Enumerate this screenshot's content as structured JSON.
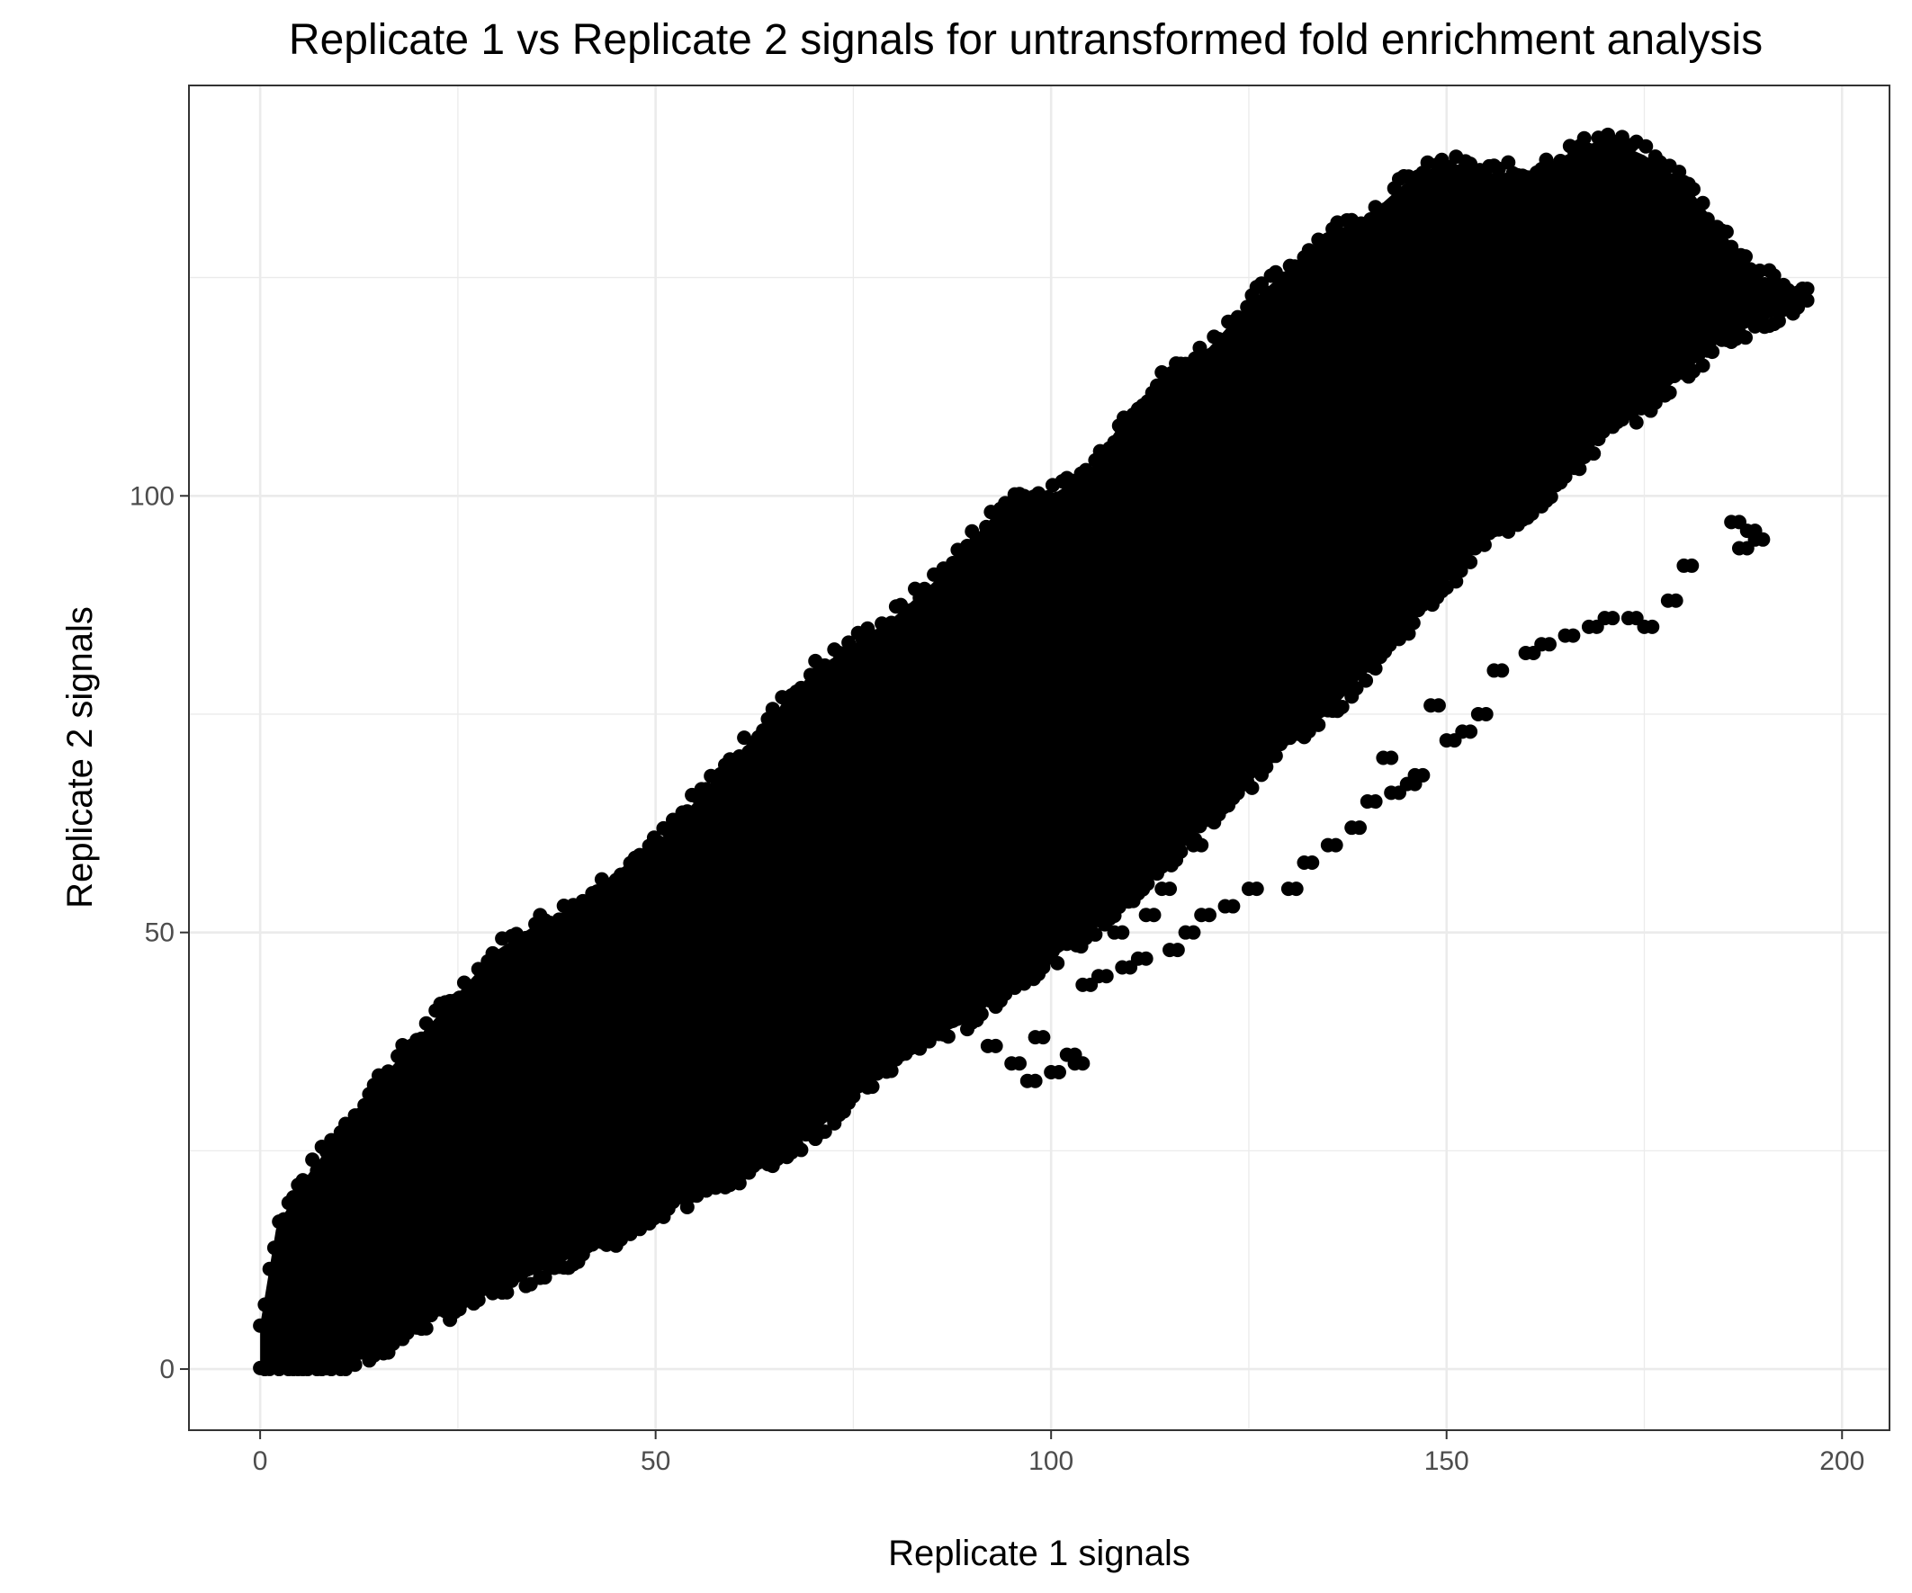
{
  "chart_data": {
    "type": "scatter",
    "title": "Replicate 1 vs Replicate 2 signals for untransformed fold enrichment analysis",
    "xlabel": "Replicate 1 signals",
    "ylabel": "Replicate 2 signals",
    "xlim": [
      -9,
      206
    ],
    "ylim": [
      -7,
      147
    ],
    "x_ticks": [
      0,
      50,
      100,
      150,
      200
    ],
    "y_ticks": [
      0,
      50,
      100
    ],
    "x_tick_labels": [
      "0",
      "50",
      "100",
      "150",
      "200"
    ],
    "y_tick_labels": [
      "0",
      "50",
      "100"
    ],
    "grid": true,
    "theme": "bw",
    "point_color": "#000000",
    "series": [
      {
        "description": "dense point cloud, approximate center line (x, y)",
        "ridge": [
          [
            0,
            0
          ],
          [
            5,
            6
          ],
          [
            10,
            10
          ],
          [
            20,
            17
          ],
          [
            30,
            24
          ],
          [
            40,
            31
          ],
          [
            50,
            38
          ],
          [
            60,
            45
          ],
          [
            70,
            52
          ],
          [
            80,
            58
          ],
          [
            90,
            65
          ],
          [
            100,
            71
          ],
          [
            110,
            78
          ],
          [
            120,
            84
          ],
          [
            130,
            91
          ],
          [
            140,
            98
          ],
          [
            150,
            105
          ],
          [
            160,
            112
          ],
          [
            170,
            118
          ],
          [
            180,
            121
          ],
          [
            195,
            122
          ]
        ],
        "upper_edge": [
          [
            0,
            5
          ],
          [
            2,
            16
          ],
          [
            5,
            21
          ],
          [
            10,
            27
          ],
          [
            15,
            33
          ],
          [
            20,
            38
          ],
          [
            25,
            43
          ],
          [
            30,
            48
          ],
          [
            35,
            51
          ],
          [
            40,
            53
          ],
          [
            45,
            57
          ],
          [
            50,
            60
          ],
          [
            55,
            65
          ],
          [
            60,
            70
          ],
          [
            65,
            75
          ],
          [
            70,
            80
          ],
          [
            75,
            83
          ],
          [
            80,
            86
          ],
          [
            85,
            90
          ],
          [
            90,
            95
          ],
          [
            95,
            100
          ],
          [
            100,
            100
          ],
          [
            105,
            103
          ],
          [
            110,
            110
          ],
          [
            115,
            114
          ],
          [
            120,
            117
          ],
          [
            125,
            122
          ],
          [
            130,
            126
          ],
          [
            135,
            130
          ],
          [
            140,
            132
          ],
          [
            145,
            136
          ],
          [
            150,
            138
          ],
          [
            155,
            137
          ],
          [
            160,
            137
          ],
          [
            165,
            139
          ],
          [
            170,
            141
          ],
          [
            175,
            139
          ],
          [
            180,
            136
          ],
          [
            185,
            130
          ],
          [
            190,
            125
          ],
          [
            195,
            123
          ]
        ],
        "lower_edge": [
          [
            0,
            0
          ],
          [
            10,
            0
          ],
          [
            15,
            2
          ],
          [
            20,
            5
          ],
          [
            25,
            7
          ],
          [
            30,
            9
          ],
          [
            35,
            11
          ],
          [
            40,
            13
          ],
          [
            45,
            15
          ],
          [
            50,
            17
          ],
          [
            55,
            20
          ],
          [
            60,
            22
          ],
          [
            65,
            24
          ],
          [
            70,
            27
          ],
          [
            75,
            31
          ],
          [
            80,
            35
          ],
          [
            85,
            38
          ],
          [
            90,
            40
          ],
          [
            95,
            44
          ],
          [
            100,
            47
          ],
          [
            105,
            50
          ],
          [
            110,
            54
          ],
          [
            115,
            58
          ],
          [
            120,
            63
          ],
          [
            125,
            67
          ],
          [
            130,
            72
          ],
          [
            135,
            75
          ],
          [
            140,
            80
          ],
          [
            145,
            85
          ],
          [
            150,
            90
          ],
          [
            155,
            95
          ],
          [
            160,
            98
          ],
          [
            165,
            102
          ],
          [
            170,
            107
          ],
          [
            175,
            110
          ],
          [
            180,
            114
          ],
          [
            185,
            118
          ],
          [
            190,
            120
          ],
          [
            195,
            122
          ]
        ],
        "outliers": [
          [
            100,
            34
          ],
          [
            95,
            35
          ],
          [
            102,
            36
          ],
          [
            103,
            35
          ],
          [
            109,
            46
          ],
          [
            111,
            47
          ],
          [
            108,
            50
          ],
          [
            112,
            52
          ],
          [
            115,
            48
          ],
          [
            117,
            50
          ],
          [
            119,
            52
          ],
          [
            122,
            53
          ],
          [
            125,
            55
          ],
          [
            130,
            55
          ],
          [
            132,
            58
          ],
          [
            135,
            60
          ],
          [
            138,
            62
          ],
          [
            140,
            65
          ],
          [
            143,
            66
          ],
          [
            145,
            67
          ],
          [
            146,
            68
          ],
          [
            142,
            70
          ],
          [
            150,
            72
          ],
          [
            152,
            73
          ],
          [
            154,
            75
          ],
          [
            148,
            76
          ],
          [
            156,
            80
          ],
          [
            160,
            82
          ],
          [
            162,
            83
          ],
          [
            165,
            84
          ],
          [
            168,
            85
          ],
          [
            170,
            86
          ],
          [
            173,
            86
          ],
          [
            175,
            85
          ],
          [
            178,
            88
          ],
          [
            180,
            92
          ],
          [
            187,
            94
          ],
          [
            189,
            95
          ],
          [
            186,
            97
          ],
          [
            188,
            96
          ],
          [
            120,
            85
          ],
          [
            118,
            60
          ],
          [
            114,
            55
          ],
          [
            106,
            45
          ],
          [
            104,
            44
          ],
          [
            98,
            38
          ],
          [
            92,
            37
          ],
          [
            97,
            33
          ]
        ]
      }
    ]
  }
}
